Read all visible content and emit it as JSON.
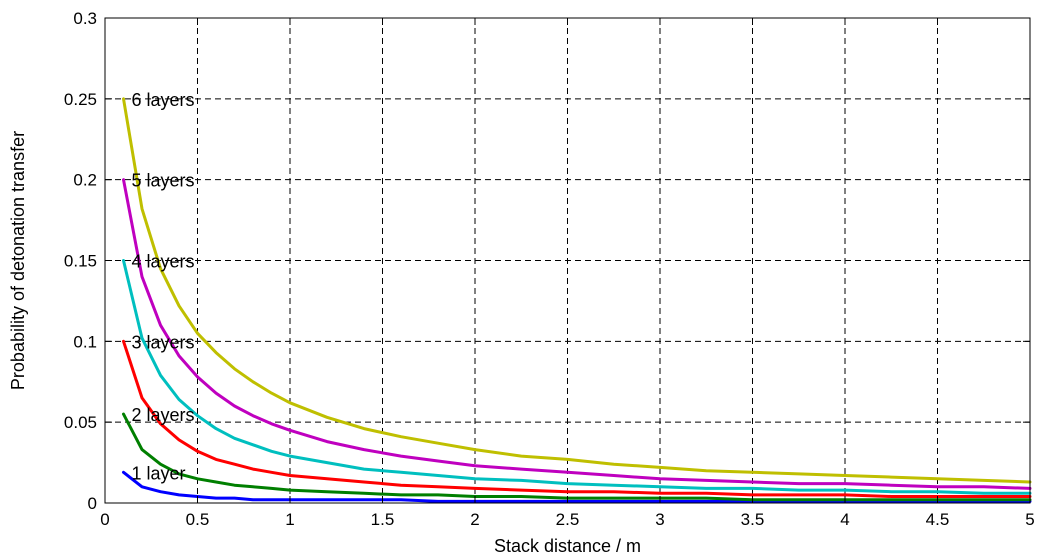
{
  "chart_data": {
    "type": "line",
    "title": "",
    "xlabel": "Stack distance / m",
    "ylabel": "Probability of detonation transfer",
    "xlim": [
      0,
      5
    ],
    "ylim": [
      0,
      0.3
    ],
    "xticks": [
      0,
      0.5,
      1,
      1.5,
      2,
      2.5,
      3,
      3.5,
      4,
      4.5,
      5
    ],
    "yticks": [
      0,
      0.05,
      0.1,
      0.15,
      0.2,
      0.25,
      0.3
    ],
    "xtick_labels": [
      "0",
      "0.5",
      "1",
      "1.5",
      "2",
      "2.5",
      "3",
      "3.5",
      "4",
      "4.5",
      "5"
    ],
    "ytick_labels": [
      "0",
      "0.05",
      "0.1",
      "0.15",
      "0.2",
      "0.25",
      "0.3"
    ],
    "grid": true,
    "legend": "none",
    "x": [
      0.1,
      0.2,
      0.3,
      0.4,
      0.5,
      0.6,
      0.7,
      0.8,
      0.9,
      1.0,
      1.2,
      1.4,
      1.6,
      1.8,
      2.0,
      2.25,
      2.5,
      2.75,
      3.0,
      3.25,
      3.5,
      3.75,
      4.0,
      4.25,
      4.5,
      4.75,
      5.0
    ],
    "series": [
      {
        "name": "1 layer",
        "color": "#0000ff",
        "values": [
          0.019,
          0.01,
          0.007,
          0.005,
          0.004,
          0.003,
          0.003,
          0.002,
          0.002,
          0.002,
          0.002,
          0.002,
          0.002,
          0.001,
          0.001,
          0.001,
          0.001,
          0.001,
          0.001,
          0.001,
          0.001,
          0.001,
          0.001,
          0.001,
          0.001,
          0.001,
          0.001
        ]
      },
      {
        "name": "2 layers",
        "color": "#007f00",
        "values": [
          0.055,
          0.033,
          0.024,
          0.018,
          0.015,
          0.013,
          0.011,
          0.01,
          0.009,
          0.008,
          0.007,
          0.006,
          0.005,
          0.005,
          0.004,
          0.004,
          0.003,
          0.003,
          0.003,
          0.003,
          0.002,
          0.002,
          0.002,
          0.002,
          0.002,
          0.002,
          0.002
        ]
      },
      {
        "name": "3 layers",
        "color": "#ff0000",
        "values": [
          0.1,
          0.065,
          0.049,
          0.039,
          0.032,
          0.027,
          0.024,
          0.021,
          0.019,
          0.017,
          0.015,
          0.013,
          0.011,
          0.01,
          0.009,
          0.008,
          0.007,
          0.007,
          0.006,
          0.006,
          0.005,
          0.005,
          0.005,
          0.004,
          0.004,
          0.004,
          0.004
        ]
      },
      {
        "name": "4 layers",
        "color": "#00bfbf",
        "values": [
          0.15,
          0.102,
          0.079,
          0.064,
          0.054,
          0.046,
          0.04,
          0.036,
          0.032,
          0.029,
          0.025,
          0.021,
          0.019,
          0.017,
          0.015,
          0.014,
          0.012,
          0.011,
          0.01,
          0.009,
          0.009,
          0.008,
          0.008,
          0.007,
          0.007,
          0.006,
          0.006
        ]
      },
      {
        "name": "5 layers",
        "color": "#bf00bf",
        "values": [
          0.2,
          0.14,
          0.11,
          0.091,
          0.078,
          0.068,
          0.06,
          0.054,
          0.049,
          0.045,
          0.038,
          0.033,
          0.029,
          0.026,
          0.023,
          0.021,
          0.019,
          0.017,
          0.015,
          0.014,
          0.013,
          0.012,
          0.012,
          0.011,
          0.01,
          0.01,
          0.009
        ]
      },
      {
        "name": "6 layers",
        "color": "#bfbf00",
        "values": [
          0.25,
          0.182,
          0.145,
          0.122,
          0.105,
          0.093,
          0.083,
          0.075,
          0.068,
          0.062,
          0.053,
          0.046,
          0.041,
          0.037,
          0.033,
          0.029,
          0.027,
          0.024,
          0.022,
          0.02,
          0.019,
          0.018,
          0.017,
          0.016,
          0.015,
          0.014,
          0.013
        ]
      }
    ]
  }
}
